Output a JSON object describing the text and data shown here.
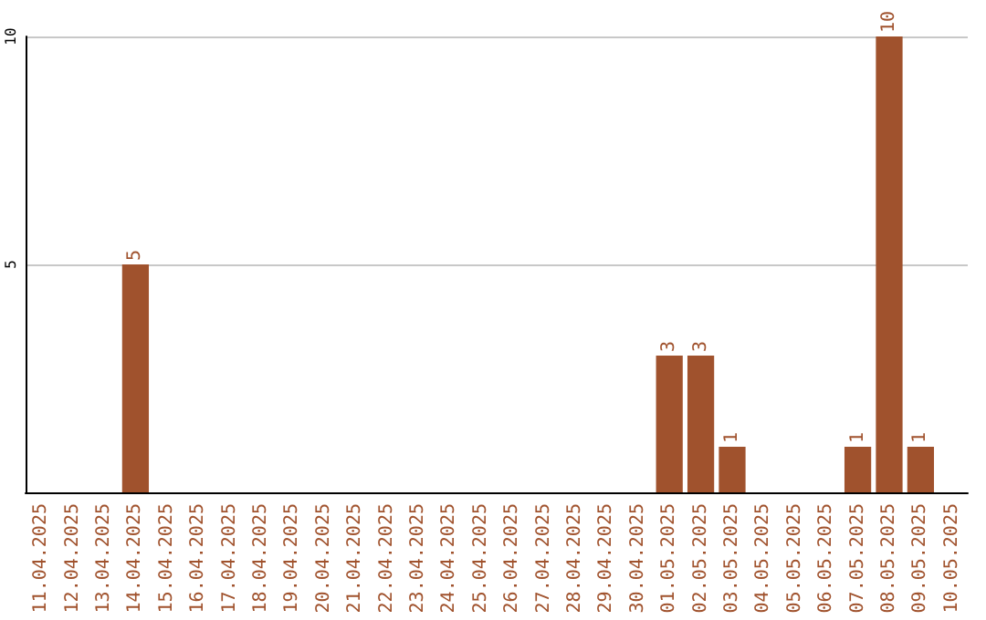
{
  "chart_data": {
    "type": "bar",
    "categories": [
      "11.04.2025",
      "12.04.2025",
      "13.04.2025",
      "14.04.2025",
      "15.04.2025",
      "16.04.2025",
      "17.04.2025",
      "18.04.2025",
      "19.04.2025",
      "20.04.2025",
      "21.04.2025",
      "22.04.2025",
      "23.04.2025",
      "24.04.2025",
      "25.04.2025",
      "26.04.2025",
      "27.04.2025",
      "28.04.2025",
      "29.04.2025",
      "30.04.2025",
      "01.05.2025",
      "02.05.2025",
      "03.05.2025",
      "04.05.2025",
      "05.05.2025",
      "06.05.2025",
      "07.05.2025",
      "08.05.2025",
      "09.05.2025",
      "10.05.2025"
    ],
    "values": [
      0,
      0,
      0,
      5,
      0,
      0,
      0,
      0,
      0,
      0,
      0,
      0,
      0,
      0,
      0,
      0,
      0,
      0,
      0,
      0,
      3,
      3,
      1,
      0,
      0,
      0,
      1,
      10,
      1,
      0
    ],
    "value_labels": [
      null,
      null,
      null,
      "5",
      null,
      null,
      null,
      null,
      null,
      null,
      null,
      null,
      null,
      null,
      null,
      null,
      null,
      null,
      null,
      null,
      "3",
      "3",
      "1",
      null,
      null,
      null,
      "1",
      "10",
      "1",
      null
    ],
    "color": "#a0522d",
    "ylim": [
      0,
      10
    ],
    "yticks": [
      5,
      10
    ],
    "grid": "y"
  }
}
